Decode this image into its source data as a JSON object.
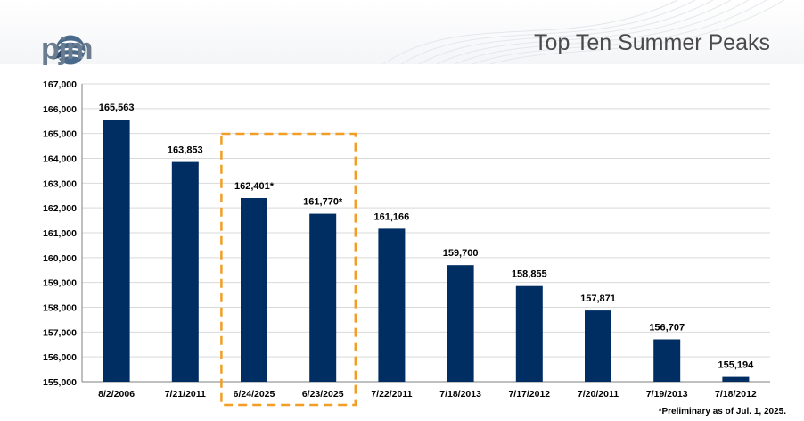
{
  "header": {
    "title": "Top Ten Summer Peaks",
    "logo_text": "pjm"
  },
  "colors": {
    "bar": "#002d62",
    "highlight": "#f29d26",
    "grid": "#d9d9d9"
  },
  "chart_data": {
    "type": "bar",
    "title": "Top Ten Summer Peaks",
    "xlabel": "",
    "ylabel": "",
    "categories": [
      "8/2/2006",
      "7/21/2011",
      "6/24/2025",
      "6/23/2025",
      "7/22/2011",
      "7/18/2013",
      "7/17/2012",
      "7/20/2011",
      "7/19/2013",
      "7/18/2012"
    ],
    "values": [
      165563,
      163853,
      162401,
      161770,
      161166,
      159700,
      158855,
      157871,
      156707,
      155194
    ],
    "data_labels": [
      "165,563",
      "163,853",
      "162,401*",
      "161,770*",
      "161,166",
      "159,700",
      "158,855",
      "157,871",
      "156,707",
      "155,194"
    ],
    "ylim": [
      155000,
      167000
    ],
    "yticks": [
      155000,
      156000,
      157000,
      158000,
      159000,
      160000,
      161000,
      162000,
      163000,
      164000,
      165000,
      166000,
      167000
    ],
    "ytick_labels": [
      "155,000",
      "156,000",
      "157,000",
      "158,000",
      "159,000",
      "160,000",
      "161,000",
      "162,000",
      "163,000",
      "164,000",
      "165,000",
      "166,000",
      "167,000"
    ],
    "grid": true,
    "legend": "none",
    "highlighted_categories": [
      "6/24/2025",
      "6/23/2025"
    ]
  },
  "footnote": "*Preliminary as of Jul. 1, 2025."
}
